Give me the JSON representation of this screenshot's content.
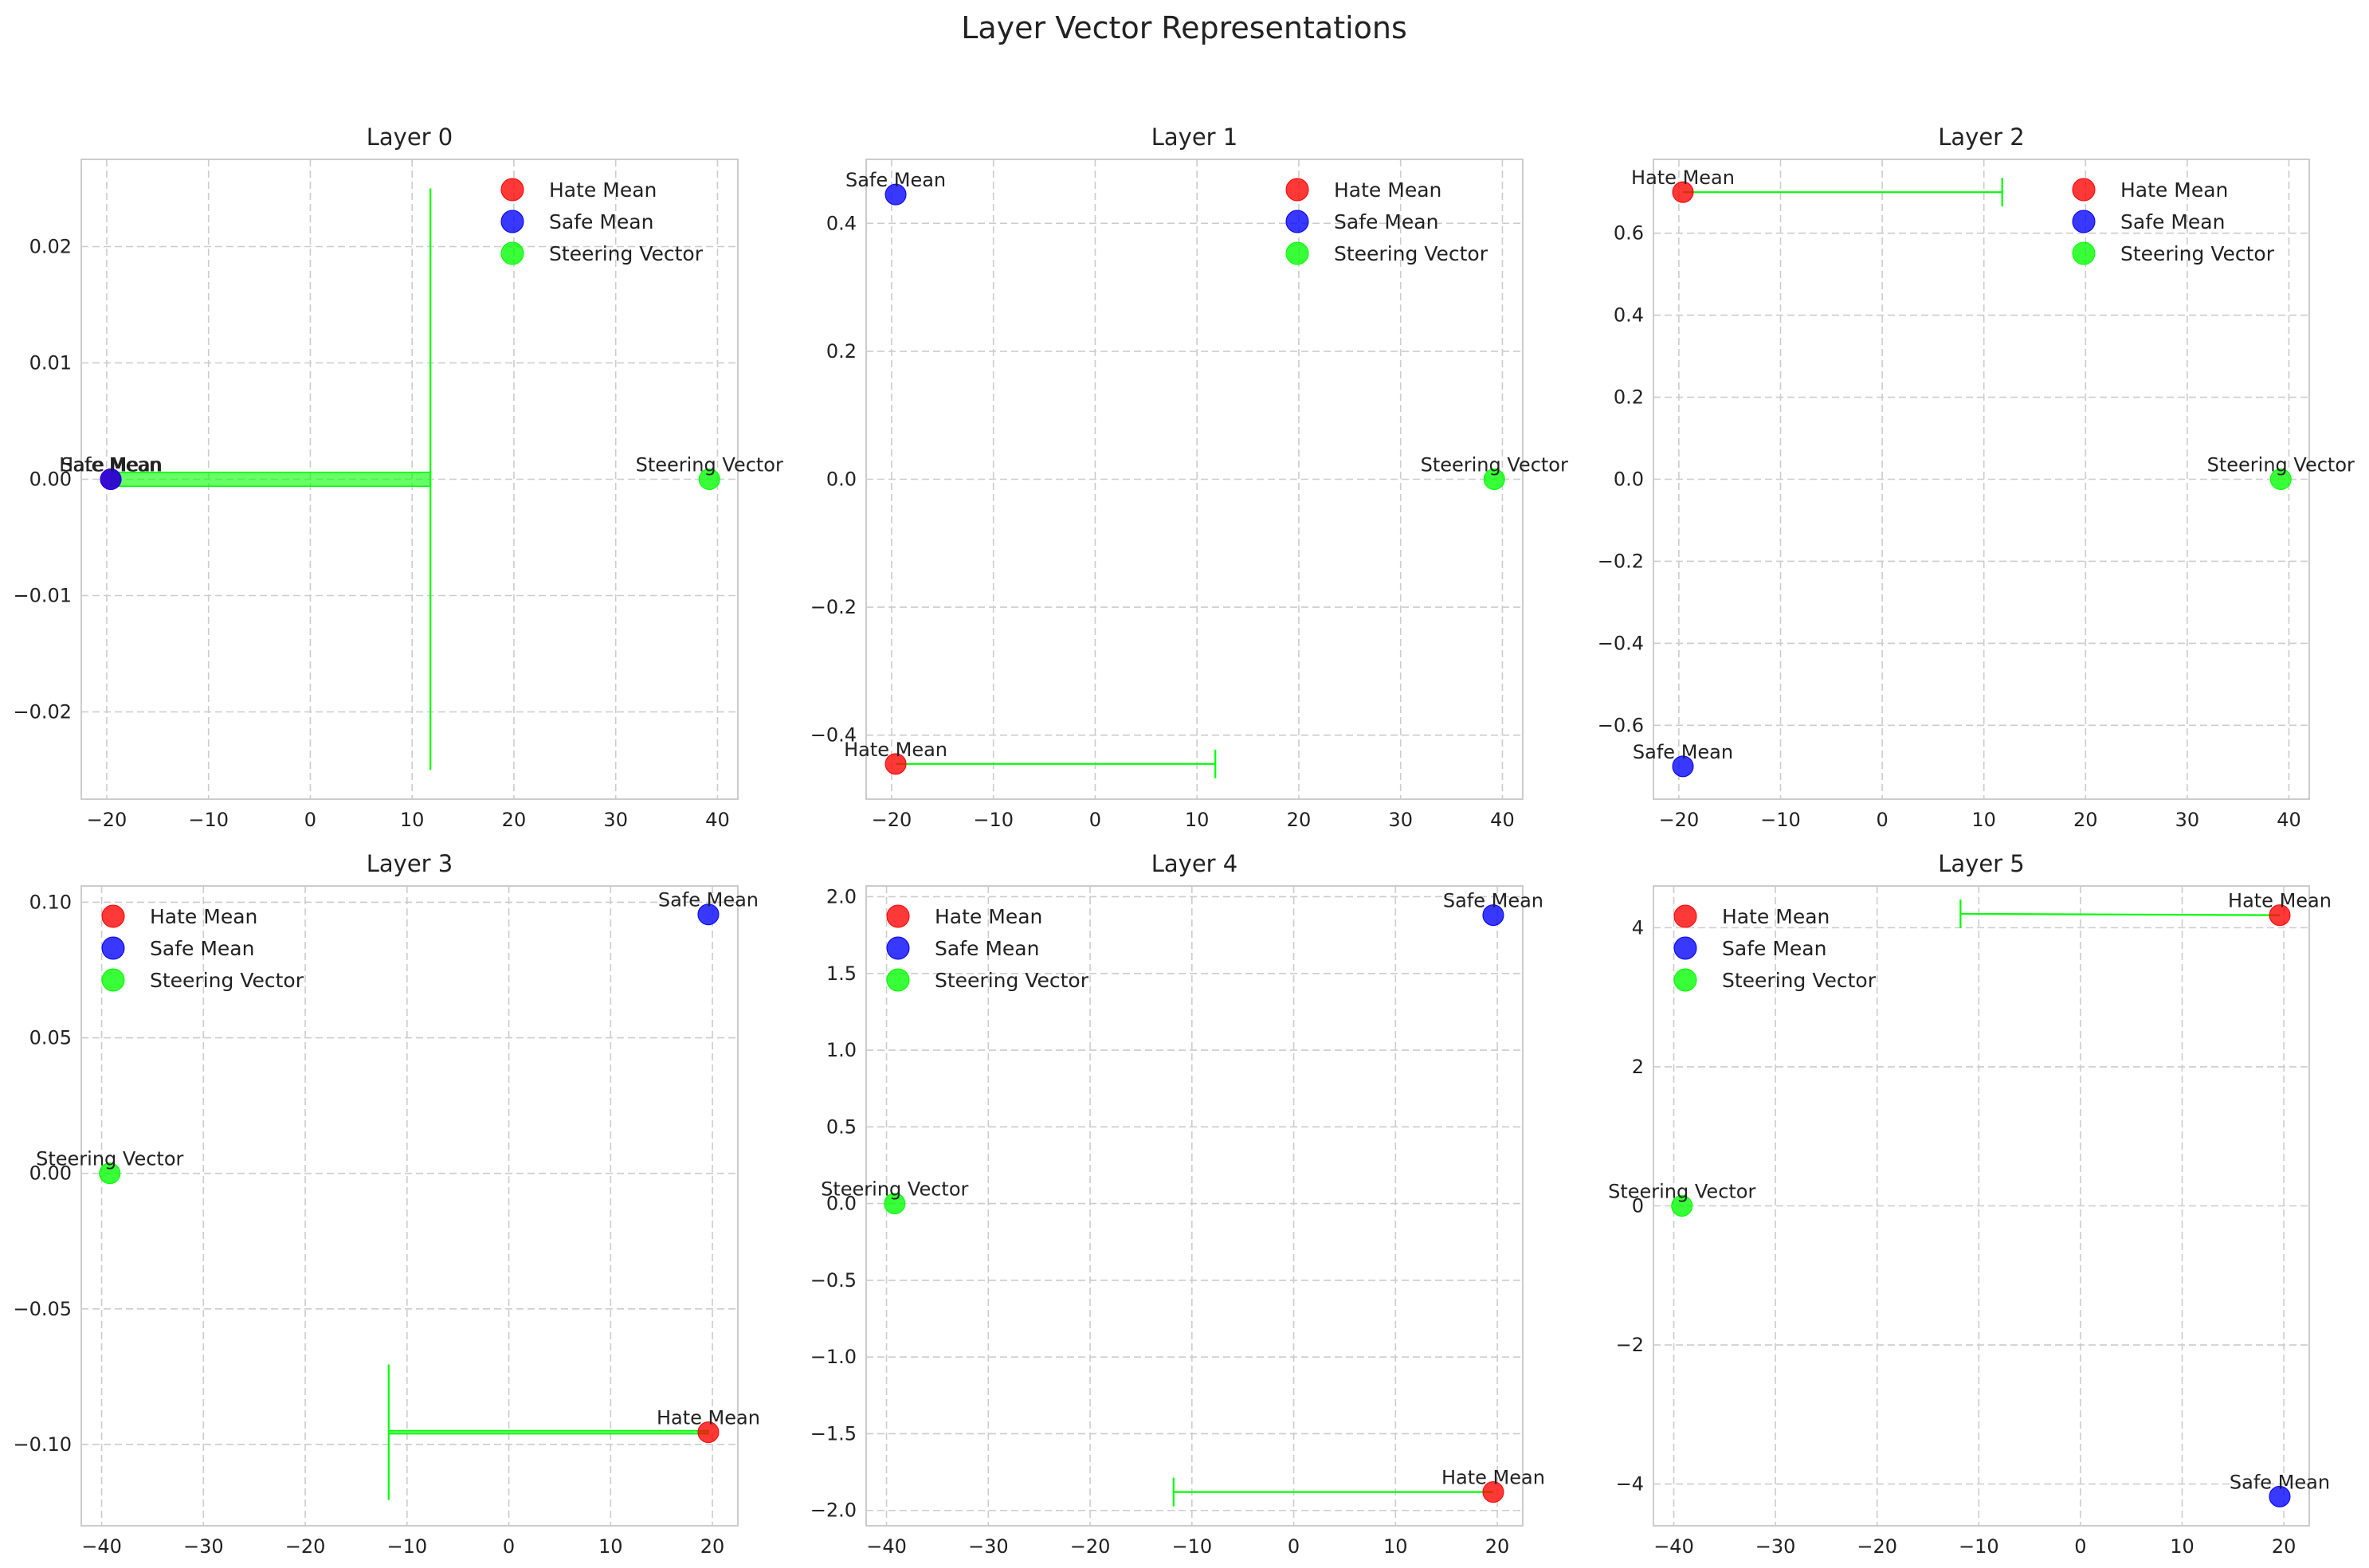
{
  "figure_title": "Layer Vector Representations",
  "colors": {
    "hate": "#ff0000",
    "safe": "#0000ff",
    "steering": "#00ff00",
    "grid": "#cccccc",
    "frame": "#cccccc"
  },
  "chart_data": [
    {
      "type": "scatter",
      "title": "Layer 0",
      "xlim": [
        -22.5,
        42
      ],
      "ylim": [
        -0.0275,
        0.0275
      ],
      "xticks": [
        -20,
        -10,
        0,
        10,
        20,
        30,
        40
      ],
      "yticks": [
        -0.02,
        -0.01,
        0.0,
        0.01,
        0.02
      ],
      "ytick_labels": [
        "−0.02",
        "−0.01",
        "0.00",
        "0.01",
        "0.02"
      ],
      "legend": "top-right",
      "series": [
        {
          "name": "Hate Mean",
          "x": -19.6,
          "y": 0.0
        },
        {
          "name": "Safe Mean",
          "x": -19.6,
          "y": 0.0
        },
        {
          "name": "Steering Vector",
          "x": 39.2,
          "y": 0.0
        }
      ],
      "annotations": [
        "Hate Mean",
        "Safe Mean",
        "Steering Vector"
      ],
      "arrow": {
        "from": [
          -19.6,
          0.0
        ],
        "to": [
          11.8,
          0.0
        ],
        "head_halfheight": 0.025,
        "shaft_halfheight": 0.0006
      }
    },
    {
      "type": "scatter",
      "title": "Layer 1",
      "xlim": [
        -22.5,
        42
      ],
      "ylim": [
        -0.5,
        0.5
      ],
      "xticks": [
        -20,
        -10,
        0,
        10,
        20,
        30,
        40
      ],
      "yticks": [
        -0.4,
        -0.2,
        0.0,
        0.2,
        0.4
      ],
      "ytick_labels": [
        "−0.4",
        "−0.2",
        "0.0",
        "0.2",
        "0.4"
      ],
      "legend": "top-right",
      "series": [
        {
          "name": "Hate Mean",
          "x": -19.6,
          "y": -0.445
        },
        {
          "name": "Safe Mean",
          "x": -19.6,
          "y": 0.445
        },
        {
          "name": "Steering Vector",
          "x": 39.2,
          "y": 0.0
        }
      ],
      "annotations": [
        "Hate Mean",
        "Safe Mean",
        "Steering Vector"
      ],
      "arrow": {
        "from": [
          -19.6,
          -0.445
        ],
        "to": [
          11.8,
          -0.445
        ],
        "head_halfheight": 0.025,
        "shaft_halfheight": 0.0
      }
    },
    {
      "type": "scatter",
      "title": "Layer 2",
      "xlim": [
        -22.5,
        42
      ],
      "ylim": [
        -0.78,
        0.78
      ],
      "xticks": [
        -20,
        -10,
        0,
        10,
        20,
        30,
        40
      ],
      "yticks": [
        -0.6,
        -0.4,
        -0.2,
        0.0,
        0.2,
        0.4,
        0.6
      ],
      "ytick_labels": [
        "−0.6",
        "−0.4",
        "−0.2",
        "0.0",
        "0.2",
        "0.4",
        "0.6"
      ],
      "legend": "top-right",
      "series": [
        {
          "name": "Hate Mean",
          "x": -19.6,
          "y": 0.7
        },
        {
          "name": "Safe Mean",
          "x": -19.6,
          "y": -0.7
        },
        {
          "name": "Steering Vector",
          "x": 39.2,
          "y": 0.0
        }
      ],
      "annotations": [
        "Hate Mean",
        "Safe Mean",
        "Steering Vector"
      ],
      "arrow": {
        "from": [
          -19.6,
          0.7
        ],
        "to": [
          11.8,
          0.7
        ],
        "head_halfheight": 0.025,
        "shaft_halfheight": 0.0
      }
    },
    {
      "type": "scatter",
      "title": "Layer 3",
      "xlim": [
        -42,
        22.5
      ],
      "ylim": [
        -0.13,
        0.106
      ],
      "xticks": [
        -40,
        -30,
        -20,
        -10,
        0,
        10,
        20
      ],
      "yticks": [
        -0.1,
        -0.05,
        0.0,
        0.05,
        0.1
      ],
      "ytick_labels": [
        "−0.10",
        "−0.05",
        "0.00",
        "0.05",
        "0.10"
      ],
      "legend": "top-left",
      "series": [
        {
          "name": "Hate Mean",
          "x": 19.6,
          "y": -0.0955
        },
        {
          "name": "Safe Mean",
          "x": 19.6,
          "y": 0.0955
        },
        {
          "name": "Steering Vector",
          "x": -39.2,
          "y": 0.0
        }
      ],
      "annotations": [
        "Hate Mean",
        "Safe Mean",
        "Steering Vector"
      ],
      "arrow": {
        "from": [
          19.6,
          -0.0955
        ],
        "to": [
          -11.8,
          -0.0955
        ],
        "head_halfheight": 0.025,
        "shaft_halfheight": 0.0006
      }
    },
    {
      "type": "scatter",
      "title": "Layer 4",
      "xlim": [
        -42,
        22.5
      ],
      "ylim": [
        -2.1,
        2.07
      ],
      "xticks": [
        -40,
        -30,
        -20,
        -10,
        0,
        10,
        20
      ],
      "yticks": [
        -2.0,
        -1.5,
        -1.0,
        -0.5,
        0.0,
        0.5,
        1.0,
        1.5,
        2.0
      ],
      "ytick_labels": [
        "−2.0",
        "−1.5",
        "−1.0",
        "−0.5",
        "0.0",
        "0.5",
        "1.0",
        "1.5",
        "2.0"
      ],
      "legend": "top-left",
      "series": [
        {
          "name": "Hate Mean",
          "x": 19.6,
          "y": -1.88
        },
        {
          "name": "Safe Mean",
          "x": 19.6,
          "y": 1.88
        },
        {
          "name": "Steering Vector",
          "x": -39.2,
          "y": 0.0
        }
      ],
      "annotations": [
        "Hate Mean",
        "Safe Mean",
        "Steering Vector"
      ],
      "arrow": {
        "from": [
          19.6,
          -1.88
        ],
        "to": [
          -11.8,
          -1.88
        ],
        "head_halfheight": 0.025,
        "shaft_halfheight": 0.0
      }
    },
    {
      "type": "scatter",
      "title": "Layer 5",
      "xlim": [
        -42,
        22.5
      ],
      "ylim": [
        -4.6,
        4.6
      ],
      "xticks": [
        -40,
        -30,
        -20,
        -10,
        0,
        10,
        20
      ],
      "yticks": [
        -4,
        -2,
        0,
        2,
        4
      ],
      "ytick_labels": [
        "−4",
        "−2",
        "0",
        "2",
        "4"
      ],
      "legend": "top-left",
      "series": [
        {
          "name": "Hate Mean",
          "x": 19.6,
          "y": 4.18
        },
        {
          "name": "Safe Mean",
          "x": 19.6,
          "y": -4.18
        },
        {
          "name": "Steering Vector",
          "x": -39.2,
          "y": 0.0
        }
      ],
      "annotations": [
        "Hate Mean",
        "Safe Mean",
        "Steering Vector"
      ],
      "arrow": {
        "from": [
          19.6,
          4.18
        ],
        "to": [
          -11.8,
          4.2
        ],
        "head_halfheight": 0.025,
        "shaft_halfheight": 0.0
      }
    }
  ]
}
